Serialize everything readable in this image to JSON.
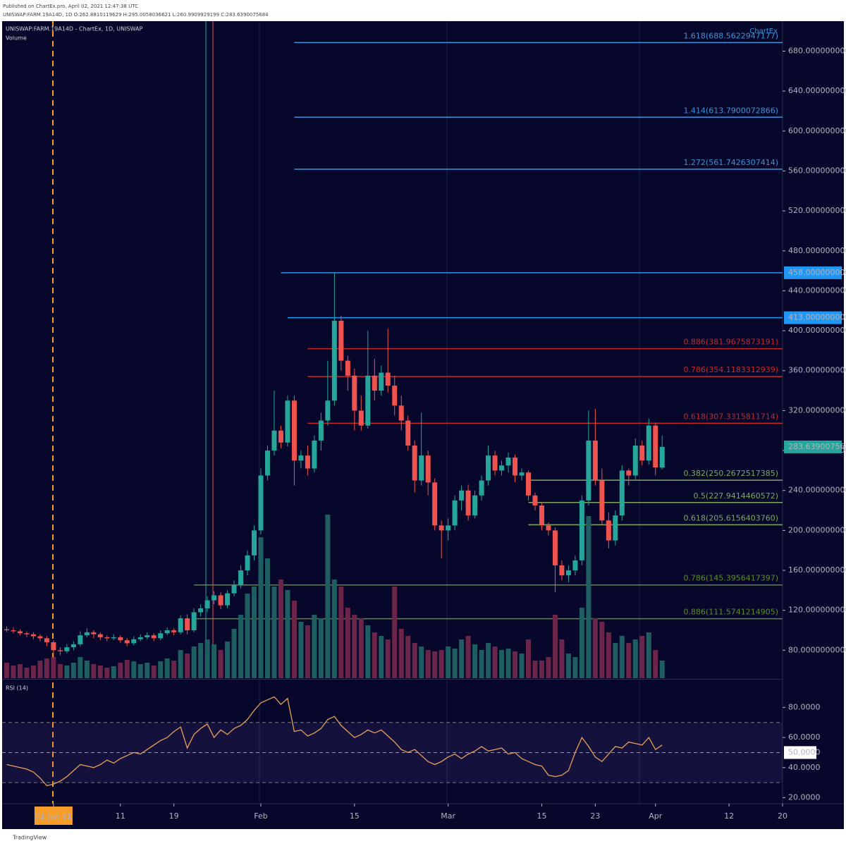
{
  "header": {
    "published": "Published on ChartEx.pro, April 02, 2021 12:47:38 UTC",
    "symbol_info": "UNISWAP:FARM.19A14D, 1D O:262.8810119629 H:295.0058036621 L:260.9909929199 C:283.6390075684",
    "logo": "ChartEx"
  },
  "chart_data": {
    "type": "candlestick",
    "legend": [
      "UNISWAP:FARM.19A14D - ChartEx, 1D, UNISWAP",
      "Volume"
    ],
    "x": [
      "2020-12-25",
      "2020-12-26",
      "2020-12-27",
      "2020-12-28",
      "2020-12-29",
      "2020-12-30",
      "2020-12-31",
      "2021-01-01",
      "2021-01-02",
      "2021-01-03",
      "2021-01-04",
      "2021-01-05",
      "2021-01-06",
      "2021-01-07",
      "2021-01-08",
      "2021-01-09",
      "2021-01-10",
      "2021-01-11",
      "2021-01-12",
      "2021-01-13",
      "2021-01-14",
      "2021-01-15",
      "2021-01-16",
      "2021-01-17",
      "2021-01-18",
      "2021-01-19",
      "2021-01-20",
      "2021-01-21",
      "2021-01-22",
      "2021-01-23",
      "2021-01-24",
      "2021-01-25",
      "2021-01-26",
      "2021-01-27",
      "2021-01-28",
      "2021-01-29",
      "2021-01-30",
      "2021-01-31",
      "2021-02-01",
      "2021-02-02",
      "2021-02-03",
      "2021-02-04",
      "2021-02-05",
      "2021-02-06",
      "2021-02-07",
      "2021-02-08",
      "2021-02-09",
      "2021-02-10",
      "2021-02-11",
      "2021-02-12",
      "2021-02-13",
      "2021-02-14",
      "2021-02-15",
      "2021-02-16",
      "2021-02-17",
      "2021-02-18",
      "2021-02-19",
      "2021-02-20",
      "2021-02-21",
      "2021-02-22",
      "2021-02-23",
      "2021-02-24",
      "2021-02-25",
      "2021-02-26",
      "2021-02-27",
      "2021-02-28",
      "2021-03-01",
      "2021-03-02",
      "2021-03-03",
      "2021-03-04",
      "2021-03-05",
      "2021-03-06",
      "2021-03-07",
      "2021-03-08",
      "2021-03-09",
      "2021-03-10",
      "2021-03-11",
      "2021-03-12",
      "2021-03-13",
      "2021-03-14",
      "2021-03-15",
      "2021-03-16",
      "2021-03-17",
      "2021-03-18",
      "2021-03-19",
      "2021-03-20",
      "2021-03-21",
      "2021-03-22",
      "2021-03-23",
      "2021-03-24",
      "2021-03-25",
      "2021-03-26",
      "2021-03-27",
      "2021-03-28",
      "2021-03-29",
      "2021-03-30",
      "2021-03-31",
      "2021-04-01",
      "2021-04-02"
    ],
    "open": [
      101,
      100,
      99,
      97,
      96,
      94,
      92,
      88,
      80,
      79,
      83,
      86,
      95,
      98,
      96,
      93,
      92,
      93,
      90,
      87,
      91,
      93,
      95,
      92,
      97,
      100,
      98,
      112,
      100,
      118,
      122,
      130,
      135,
      125,
      137,
      145,
      160,
      175,
      200,
      255,
      280,
      300,
      288,
      330,
      270,
      275,
      262,
      290,
      310,
      330,
      410,
      370,
      355,
      320,
      305,
      355,
      340,
      358,
      345,
      325,
      310,
      285,
      250,
      275,
      248,
      205,
      200,
      205,
      230,
      240,
      215,
      235,
      250,
      275,
      260,
      265,
      273,
      255,
      258,
      235,
      225,
      205,
      200,
      165,
      155,
      160,
      170,
      230,
      290,
      250,
      210,
      190,
      215,
      260,
      255,
      285,
      270,
      305,
      262.8810119629
    ],
    "high": [
      104,
      103,
      101,
      99,
      98,
      96,
      94,
      90,
      83,
      86,
      89,
      99,
      102,
      100,
      98,
      95,
      96,
      95,
      92,
      94,
      96,
      98,
      97,
      100,
      103,
      102,
      115,
      116,
      122,
      126,
      134,
      139,
      138,
      140,
      150,
      165,
      180,
      205,
      262,
      285,
      340,
      305,
      335,
      335,
      280,
      285,
      295,
      318,
      370,
      458,
      415,
      375,
      362,
      335,
      400,
      372,
      365,
      402,
      355,
      335,
      315,
      290,
      318,
      280,
      252,
      210,
      212,
      235,
      245,
      246,
      240,
      255,
      285,
      280,
      270,
      278,
      276,
      262,
      260,
      238,
      228,
      208,
      203,
      170,
      165,
      175,
      235,
      320,
      322,
      262,
      218,
      220,
      265,
      262,
      292,
      290,
      312,
      308,
      295.0058036621
    ],
    "low": [
      98,
      97,
      95,
      93,
      91,
      89,
      84,
      72,
      75,
      77,
      80,
      84,
      93,
      92,
      90,
      89,
      90,
      87,
      84,
      85,
      89,
      91,
      89,
      90,
      95,
      95,
      96,
      96,
      98,
      114,
      118,
      126,
      121,
      122,
      134,
      142,
      155,
      170,
      196,
      250,
      275,
      282,
      284,
      245,
      262,
      255,
      258,
      280,
      305,
      325,
      360,
      340,
      300,
      300,
      302,
      330,
      335,
      338,
      315,
      300,
      280,
      238,
      245,
      235,
      200,
      172,
      190,
      200,
      220,
      210,
      212,
      230,
      245,
      255,
      255,
      258,
      248,
      250,
      230,
      220,
      200,
      195,
      138,
      150,
      148,
      155,
      165,
      225,
      245,
      205,
      182,
      185,
      210,
      245,
      250,
      265,
      266,
      255,
      260.9909929199
    ],
    "close": [
      100,
      99,
      97,
      96,
      94,
      92,
      88,
      80,
      79,
      83,
      86,
      95,
      98,
      96,
      93,
      92,
      93,
      90,
      87,
      91,
      93,
      95,
      92,
      97,
      100,
      98,
      112,
      100,
      118,
      122,
      130,
      135,
      125,
      137,
      145,
      160,
      175,
      200,
      255,
      280,
      300,
      288,
      330,
      270,
      275,
      262,
      290,
      310,
      330,
      410,
      370,
      355,
      320,
      305,
      355,
      340,
      358,
      345,
      325,
      310,
      285,
      250,
      275,
      248,
      205,
      200,
      205,
      230,
      240,
      215,
      235,
      250,
      275,
      260,
      265,
      273,
      255,
      258,
      235,
      225,
      205,
      200,
      165,
      155,
      160,
      170,
      230,
      290,
      250,
      210,
      190,
      215,
      260,
      255,
      285,
      270,
      305,
      263,
      283.6390075684
    ],
    "volume": [
      22,
      18,
      20,
      15,
      18,
      25,
      28,
      30,
      20,
      18,
      22,
      30,
      25,
      20,
      18,
      15,
      17,
      22,
      26,
      24,
      20,
      22,
      18,
      24,
      28,
      25,
      40,
      35,
      45,
      50,
      55,
      48,
      40,
      52,
      70,
      90,
      120,
      130,
      200,
      170,
      130,
      140,
      125,
      110,
      80,
      75,
      90,
      85,
      232,
      140,
      130,
      100,
      90,
      85,
      75,
      65,
      60,
      55,
      130,
      70,
      60,
      50,
      45,
      40,
      38,
      40,
      45,
      42,
      55,
      60,
      48,
      40,
      50,
      45,
      40,
      42,
      38,
      35,
      55,
      25,
      25,
      30,
      90,
      55,
      35,
      30,
      100,
      230,
      85,
      80,
      65,
      50,
      60,
      50,
      55,
      60,
      65,
      40,
      25
    ],
    "colors": {
      "up": "#26a69a",
      "down": "#ef5350",
      "volume_up": "#1f5e60",
      "volume_down": "#6a2548"
    },
    "xlim": [
      "2020-12-24",
      "2021-04-20"
    ],
    "xticks": [
      {
        "value": "2021-01-01",
        "label": "01 Jan 21"
      },
      {
        "value": "2021-01-11",
        "label": "11"
      },
      {
        "value": "2021-01-19",
        "label": "19"
      },
      {
        "value": "2021-02-01",
        "label": "Feb"
      },
      {
        "value": "2021-02-15",
        "label": "15"
      },
      {
        "value": "2021-03-01",
        "label": "Mar"
      },
      {
        "value": "2021-03-15",
        "label": "15"
      },
      {
        "value": "2021-03-23",
        "label": "23"
      },
      {
        "value": "2021-04-01",
        "label": "Apr"
      },
      {
        "value": "2021-04-12",
        "label": "12"
      },
      {
        "value": "2021-04-20",
        "label": "20"
      }
    ],
    "ylim": [
      52,
      710
    ],
    "yticks": [
      {
        "value": 80,
        "label": "80.0000000000"
      },
      {
        "value": 120,
        "label": "120.0000000000"
      },
      {
        "value": 160,
        "label": "160.0000000000"
      },
      {
        "value": 200,
        "label": "200.0000000000"
      },
      {
        "value": 240,
        "label": "240.0000000000"
      },
      {
        "value": 280,
        "label": "280.0000000000"
      },
      {
        "value": 320,
        "label": "320.0000000000"
      },
      {
        "value": 360,
        "label": "360.0000000000"
      },
      {
        "value": 400,
        "label": "400.0000000000"
      },
      {
        "value": 440,
        "label": "440.0000000000"
      },
      {
        "value": 480,
        "label": "480.0000000000"
      },
      {
        "value": 520,
        "label": "520.0000000000"
      },
      {
        "value": 560,
        "label": "560.0000000000"
      },
      {
        "value": 600,
        "label": "600.0000000000"
      },
      {
        "value": 640,
        "label": "640.0000000000"
      },
      {
        "value": 680,
        "label": "680.0000000000"
      }
    ],
    "last_price": 283.6390075684,
    "levels": [
      {
        "label": "1.618(688.5622947177)",
        "value": 688.5622947177,
        "from": "2021-02-06",
        "color": "#3d93d8"
      },
      {
        "label": "1.414(613.7900072866)",
        "value": 613.7900072866,
        "from": "2021-02-06",
        "color": "#3d93d8"
      },
      {
        "label": "1.272(561.7426307414)",
        "value": 561.7426307414,
        "from": "2021-02-06",
        "color": "#3d93d8"
      },
      {
        "label": "0.886(381.9675873191)",
        "value": 381.9675873191,
        "from": "2021-02-08",
        "color": "#c62828"
      },
      {
        "label": "0.786(354.1183312939)",
        "value": 354.1183312939,
        "from": "2021-02-08",
        "color": "#c62828"
      },
      {
        "label": "0.618(307.3315811714)",
        "value": 307.3315811714,
        "from": "2021-02-08",
        "color": "#c62828"
      },
      {
        "label": "0.382(250.2672517385)",
        "value": 250.2672517385,
        "from": "2021-03-13",
        "color": "#7fa860"
      },
      {
        "label": "0.5(227.9414460572)",
        "value": 227.9414460572,
        "from": "2021-03-13",
        "color": "#7fa860"
      },
      {
        "label": "0.618(205.6156403760)",
        "value": 205.615640376,
        "from": "2021-03-13",
        "color": "#7fa860"
      },
      {
        "label": "0.786(145.3956417397)",
        "value": 145.3956417397,
        "from": "2021-01-22",
        "color": "#5f8a2e"
      },
      {
        "label": "0.886(111.5741214905)",
        "value": 111.5741214905,
        "from": "2021-01-22",
        "color": "#5f8a2e"
      }
    ],
    "price_marks": [
      {
        "value": 458,
        "label": "458.0000000000",
        "from": "2021-02-04",
        "color": "#2196f3"
      },
      {
        "value": 413,
        "label": "413.0000000000",
        "from": "2021-02-05",
        "color": "#2196f3"
      }
    ],
    "rsi": {
      "title": "RSI (14)",
      "color": "#e8a15a",
      "values": [
        42,
        41,
        40,
        39,
        37,
        33,
        28,
        29,
        31,
        34,
        38,
        42,
        41,
        40,
        42,
        45,
        43,
        46,
        48,
        50,
        49,
        52,
        55,
        58,
        60,
        64,
        67,
        53,
        62,
        66,
        69,
        60,
        65,
        62,
        66,
        68,
        72,
        78,
        83,
        85,
        87,
        82,
        86,
        64,
        65,
        61,
        63,
        66,
        72,
        74,
        68,
        64,
        60,
        62,
        65,
        63,
        65,
        61,
        57,
        52,
        50,
        52,
        48,
        44,
        42,
        44,
        47,
        49,
        46,
        49,
        51,
        54,
        51,
        52,
        53,
        49,
        50,
        46,
        44,
        42,
        41,
        35,
        34,
        35,
        38,
        50,
        60,
        54,
        47,
        44,
        49,
        54,
        53,
        57,
        56,
        55,
        60,
        52,
        55
      ],
      "ylim": [
        16,
        98
      ],
      "yticks": [
        {
          "value": 20,
          "label": "20.0000"
        },
        {
          "value": 40,
          "label": "40.0000"
        },
        {
          "value": 60,
          "label": "60.0000"
        },
        {
          "value": 80,
          "label": "80.0000"
        }
      ],
      "band": [
        30,
        70
      ],
      "mid": {
        "value": 50,
        "label": "50.0000"
      }
    }
  },
  "footer": "TradingView"
}
